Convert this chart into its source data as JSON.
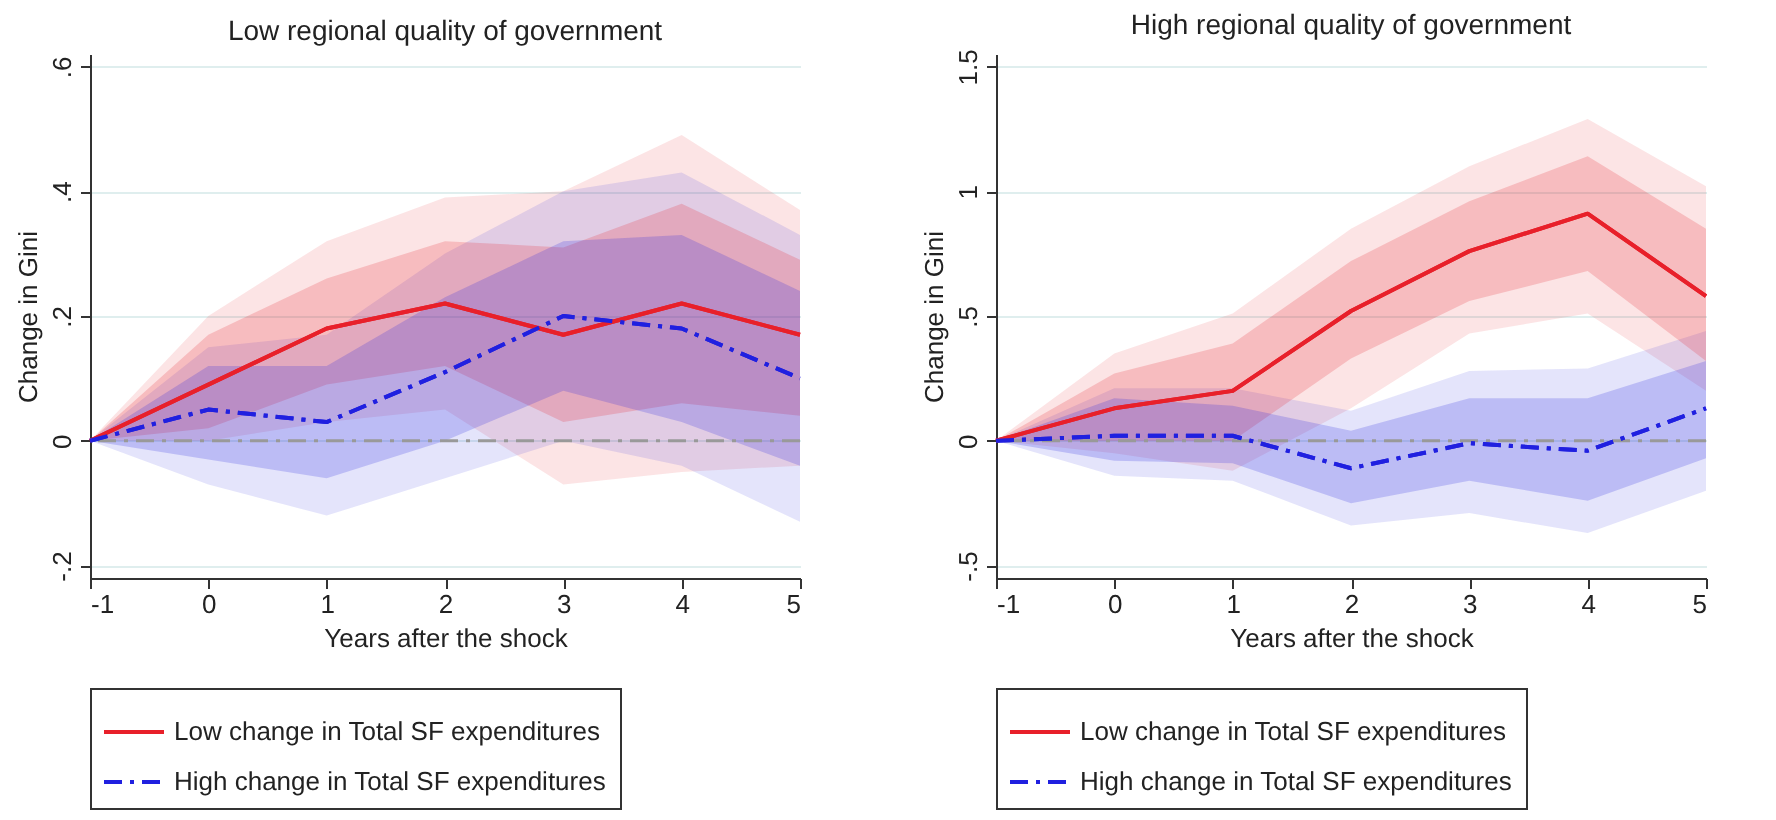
{
  "chart_data": [
    {
      "type": "line",
      "title": "Low regional quality of government",
      "xlabel": "Years after the shock",
      "ylabel": "Change in Gini",
      "x": [
        -1,
        0,
        1,
        2,
        3,
        4,
        5
      ],
      "xlim": [
        -1,
        5
      ],
      "xticks": [
        -1,
        0,
        1,
        2,
        3,
        4,
        5
      ],
      "ylim": [
        -0.22,
        0.62
      ],
      "yticks": [
        {
          "value": -0.2,
          "label": "-.2"
        },
        0,
        {
          "value": 0.2,
          "label": ".2"
        },
        {
          "value": 0.4,
          "label": ".4"
        },
        {
          "value": 0.6,
          "label": ".6"
        }
      ],
      "grid": "y",
      "legend": "bottom",
      "ref_lines": [
        {
          "axis": "y",
          "value": 0,
          "color": "#999999",
          "line_style": "dashed"
        }
      ],
      "series": [
        {
          "color": "#e8202b",
          "line_style": "solid",
          "values": [
            0,
            0.09,
            0.18,
            0.22,
            0.17,
            0.22,
            0.17
          ],
          "lower": [
            0,
            0,
            0.03,
            0.05,
            -0.07,
            -0.05,
            -0.04
          ],
          "upper": [
            0,
            0.2,
            0.32,
            0.39,
            0.4,
            0.49,
            0.37
          ]
        },
        {
          "color": "#2020e1",
          "line_style": "dashed",
          "values": [
            0,
            0.05,
            0.03,
            0.11,
            0.2,
            0.18,
            0.1
          ],
          "lower": [
            0,
            -0.07,
            -0.12,
            -0.06,
            0,
            -0.04,
            -0.13
          ],
          "upper": [
            0,
            0.15,
            0.17,
            0.3,
            0.4,
            0.43,
            0.33
          ]
        },
        {
          "name": "Low change in Total SF expenditures",
          "color": "#e8202a",
          "line_style": "solid",
          "values": [
            0,
            0.09,
            0.18,
            0.22,
            0.17,
            0.22,
            0.17
          ],
          "lower": [
            0,
            0.02,
            0.09,
            0.12,
            0.03,
            0.06,
            0.04
          ],
          "upper": [
            0,
            0.17,
            0.26,
            0.32,
            0.31,
            0.38,
            0.29
          ]
        },
        {
          "name": "High change in Total SF expenditures",
          "color": "#2020e0",
          "line_style": "dashed",
          "values": [
            0,
            0.05,
            0.03,
            0.11,
            0.2,
            0.18,
            0.1
          ],
          "lower": [
            0,
            -0.03,
            -0.06,
            0,
            0.08,
            0.03,
            -0.04
          ],
          "upper": [
            0,
            0.12,
            0.12,
            0.23,
            0.32,
            0.33,
            0.24
          ]
        }
      ]
    },
    {
      "type": "line",
      "title": "High regional quality of government",
      "xlabel": "Years after the shock",
      "ylabel": "Change in Gini",
      "x": [
        -1,
        0,
        1,
        2,
        3,
        4,
        5
      ],
      "xlim": [
        -1,
        5
      ],
      "xticks": [
        -1,
        0,
        1,
        2,
        3,
        4,
        5
      ],
      "ylim": [
        -0.55,
        1.55
      ],
      "yticks": [
        {
          "value": -0.5,
          "label": "-.5"
        },
        0,
        {
          "value": 0.5,
          "label": ".5"
        },
        1,
        1.5
      ],
      "grid": "y",
      "legend": "bottom",
      "ref_lines": [
        {
          "axis": "y",
          "value": 0,
          "color": "#999999",
          "line_style": "dashed"
        }
      ],
      "series": [
        {
          "color": "#e8202b",
          "line_style": "solid",
          "values": [
            0,
            0.13,
            0.2,
            0.52,
            0.76,
            0.91,
            0.58
          ],
          "lower": [
            0,
            -0.05,
            -0.12,
            0.13,
            0.43,
            0.51,
            0.2
          ],
          "upper": [
            0,
            0.35,
            0.51,
            0.85,
            1.1,
            1.29,
            1.02
          ]
        },
        {
          "color": "#2020e1",
          "line_style": "dashed",
          "values": [
            0,
            0.02,
            0.02,
            -0.11,
            -0.01,
            -0.04,
            0.13
          ],
          "lower": [
            0,
            -0.14,
            -0.16,
            -0.34,
            -0.29,
            -0.37,
            -0.2
          ],
          "upper": [
            0,
            0.21,
            0.21,
            0.12,
            0.28,
            0.29,
            0.44
          ]
        },
        {
          "name": "Low change in Total SF expenditures",
          "color": "#e8202a",
          "line_style": "solid",
          "values": [
            0,
            0.13,
            0.2,
            0.52,
            0.76,
            0.91,
            0.58
          ],
          "lower": [
            0,
            0,
            0,
            0.33,
            0.56,
            0.68,
            0.32
          ],
          "upper": [
            0,
            0.27,
            0.39,
            0.72,
            0.96,
            1.14,
            0.85
          ]
        },
        {
          "name": "High change in Total SF expenditures",
          "color": "#2020e0",
          "line_style": "dashed",
          "values": [
            0,
            0.02,
            0.02,
            -0.11,
            -0.01,
            -0.04,
            0.13
          ],
          "lower": [
            0,
            -0.08,
            -0.09,
            -0.25,
            -0.16,
            -0.24,
            -0.07
          ],
          "upper": [
            0,
            0.17,
            0.14,
            0.04,
            0.17,
            0.17,
            0.32
          ]
        }
      ]
    }
  ]
}
